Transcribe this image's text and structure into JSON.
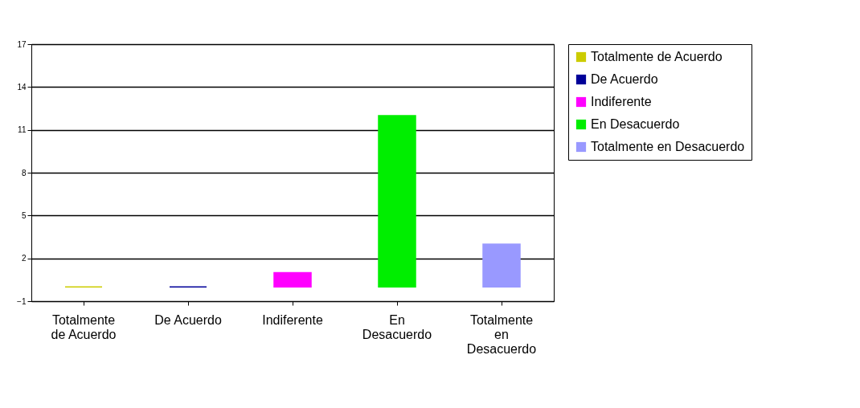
{
  "chart_data": {
    "type": "bar",
    "categories": [
      "Totalmente de Acuerdo",
      "De Acuerdo",
      "Indiferente",
      "En Desacuerdo",
      "Totalmente en Desacuerdo"
    ],
    "series": [
      {
        "name": "Totalmente de Acuerdo",
        "color": "#cccc00",
        "values": [
          0,
          null,
          null,
          null,
          null
        ]
      },
      {
        "name": "De Acuerdo",
        "color": "#000099",
        "values": [
          null,
          0,
          null,
          null,
          null
        ]
      },
      {
        "name": "Indiferente",
        "color": "#ff00ff",
        "values": [
          null,
          null,
          1,
          null,
          null
        ]
      },
      {
        "name": "En Desacuerdo",
        "color": "#00ee00",
        "values": [
          null,
          null,
          null,
          12,
          null
        ]
      },
      {
        "name": "Totalmente en Desacuerdo",
        "color": "#9999ff",
        "values": [
          null,
          null,
          null,
          null,
          3
        ]
      }
    ],
    "ylim": [
      -1,
      17
    ],
    "yticks": [
      -1,
      2,
      5,
      8,
      11,
      14,
      17
    ],
    "grid": "y",
    "legend": "top right"
  }
}
